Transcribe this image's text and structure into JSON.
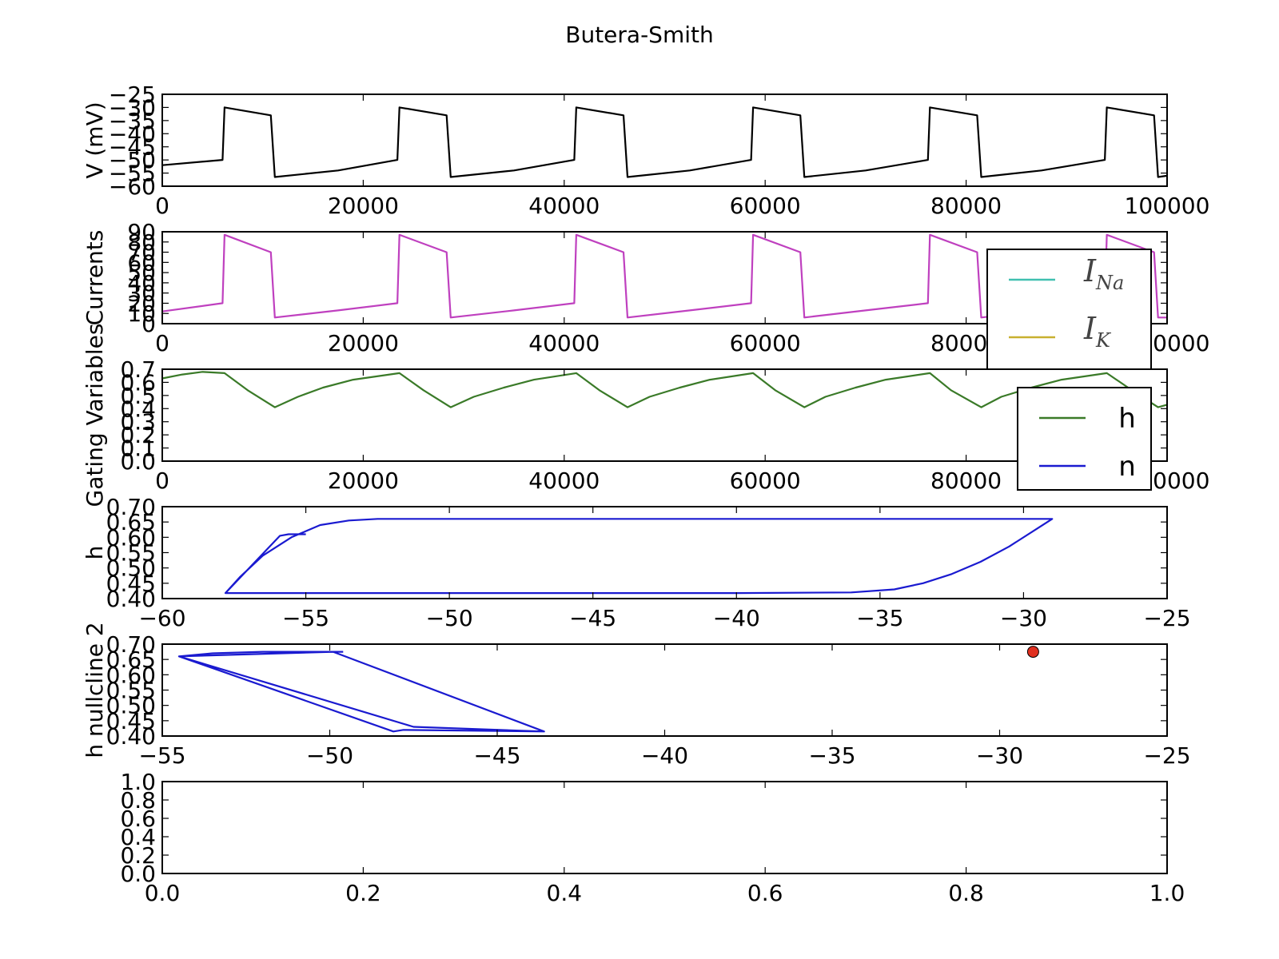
{
  "figure": {
    "title": "Butera-Smith"
  },
  "chart_data": [
    {
      "id": "voltage",
      "type": "line",
      "title": "",
      "ylabel": "V (mV)",
      "xlabel": "",
      "xlim": [
        0,
        100000
      ],
      "ylim": [
        -60,
        -25
      ],
      "xticks": [
        0,
        20000,
        40000,
        60000,
        80000,
        100000
      ],
      "yticks": [
        -60,
        -55,
        -50,
        -45,
        -40,
        -35,
        -30,
        -25
      ],
      "series": [
        {
          "color": "#000000",
          "x": [
            0,
            6000,
            6200,
            10800,
            11200,
            17500,
            23400,
            23600,
            28300,
            28700,
            35000,
            41000,
            41200,
            45900,
            46300,
            52500,
            58600,
            58800,
            63500,
            63900,
            70000,
            76200,
            76400,
            81100,
            81500,
            87500,
            93800,
            94000,
            98700,
            99100,
            100000
          ],
          "y": [
            -52,
            -50,
            -30,
            -33,
            -56.5,
            -54,
            -50,
            -30,
            -33,
            -56.5,
            -54,
            -50,
            -30,
            -33,
            -56.5,
            -54,
            -50,
            -30,
            -33,
            -56.5,
            -54,
            -50,
            -30,
            -33,
            -56.5,
            -54,
            -50,
            -30,
            -33,
            -56.5,
            -56
          ]
        }
      ],
      "legend": []
    },
    {
      "id": "currents",
      "type": "line",
      "ylabel": "Currents",
      "xlim": [
        0,
        100000
      ],
      "ylim": [
        0,
        90
      ],
      "xticks": [
        0,
        20000,
        40000,
        60000,
        80000,
        100000
      ],
      "yticks": [
        0,
        10,
        20,
        30,
        40,
        50,
        60,
        70,
        80,
        90
      ],
      "series": [
        {
          "color": "#bf40bf",
          "x": [
            0,
            6000,
            6200,
            10800,
            11200,
            17500,
            23400,
            23600,
            28300,
            28700,
            35000,
            41000,
            41200,
            45900,
            46300,
            52500,
            58600,
            58800,
            63500,
            63900,
            70000,
            76200,
            76400,
            81100,
            81500,
            87500,
            93800,
            94000,
            98700,
            99100,
            100000
          ],
          "y": [
            12,
            20,
            87,
            70,
            6,
            13,
            20,
            87,
            70,
            6,
            13,
            20,
            87,
            70,
            6,
            13,
            20,
            87,
            70,
            6,
            13,
            20,
            87,
            70,
            6,
            13,
            20,
            87,
            70,
            6,
            6
          ]
        }
      ],
      "legend": [
        {
          "base": "I",
          "sub": "Na",
          "color": "#40c0b0"
        },
        {
          "base": "I",
          "sub": "K",
          "color": "#c8b030"
        }
      ]
    },
    {
      "id": "gating",
      "type": "line",
      "ylabel": "Gating Variables",
      "xlim": [
        0,
        100000
      ],
      "ylim": [
        0,
        0.7
      ],
      "xticks": [
        0,
        20000,
        40000,
        60000,
        80000,
        100000
      ],
      "yticks": [
        0,
        0.1,
        0.2,
        0.3,
        0.4,
        0.5,
        0.6,
        0.7
      ],
      "series": [
        {
          "name": "h",
          "color": "#3a7a28",
          "x": [
            0,
            2000,
            4000,
            6200,
            8500,
            11200,
            13500,
            16000,
            19000,
            23600,
            26000,
            28700,
            31000,
            34000,
            37000,
            41200,
            43500,
            46300,
            48500,
            51500,
            54500,
            58800,
            61000,
            63900,
            66000,
            69000,
            72000,
            76400,
            78500,
            81500,
            83500,
            86500,
            89500,
            94000,
            96500,
            99100,
            100000
          ],
          "y": [
            0.63,
            0.66,
            0.68,
            0.67,
            0.54,
            0.41,
            0.49,
            0.56,
            0.62,
            0.67,
            0.54,
            0.41,
            0.49,
            0.56,
            0.62,
            0.67,
            0.54,
            0.41,
            0.49,
            0.56,
            0.62,
            0.67,
            0.54,
            0.41,
            0.49,
            0.56,
            0.62,
            0.67,
            0.54,
            0.41,
            0.49,
            0.56,
            0.62,
            0.67,
            0.54,
            0.41,
            0.43
          ]
        }
      ],
      "legend": [
        {
          "label": "h",
          "color": "#3a7a28"
        },
        {
          "label": "n",
          "color": "#1a1ad0"
        }
      ]
    },
    {
      "id": "phase",
      "type": "line",
      "ylabel": "h",
      "xlim": [
        -60,
        -25
      ],
      "ylim": [
        0.4,
        0.7
      ],
      "xticks": [
        -60,
        -55,
        -50,
        -45,
        -40,
        -35,
        -30,
        -25
      ],
      "yticks": [
        0.4,
        0.45,
        0.5,
        0.55,
        0.6,
        0.65,
        0.7
      ],
      "series": [
        {
          "color": "#1a1ad0",
          "x": [
            -55,
            -55.6,
            -55.9,
            -57.8,
            -57.3,
            -56.5,
            -55.5,
            -54.5,
            -53.5,
            -52.5,
            -40,
            -30,
            -29,
            -29.5,
            -30.5,
            -31.5,
            -32.5,
            -33.5,
            -34.5,
            -36,
            -40,
            -50,
            -57.8
          ],
          "y": [
            0.61,
            0.61,
            0.605,
            0.418,
            0.47,
            0.54,
            0.6,
            0.64,
            0.655,
            0.66,
            0.66,
            0.66,
            0.66,
            0.63,
            0.57,
            0.52,
            0.48,
            0.45,
            0.43,
            0.42,
            0.418,
            0.418,
            0.418
          ]
        }
      ],
      "legend": []
    },
    {
      "id": "nullcline",
      "type": "line",
      "ylabel": "h nullcline 2",
      "xlim": [
        -55,
        -25
      ],
      "ylim": [
        0.4,
        0.7
      ],
      "xticks": [
        -55,
        -50,
        -45,
        -40,
        -35,
        -30,
        -25
      ],
      "yticks": [
        0.4,
        0.45,
        0.5,
        0.55,
        0.6,
        0.65,
        0.7
      ],
      "series": [
        {
          "color": "#1a1ad0",
          "x": [
            -49.6,
            -52,
            -53.5,
            -54.5,
            -48.1,
            -47.8,
            -43.6,
            -49.9,
            -54.5,
            -47.5,
            -43.6
          ],
          "y": [
            0.675,
            0.675,
            0.67,
            0.66,
            0.415,
            0.42,
            0.415,
            0.675,
            0.66,
            0.43,
            0.415
          ]
        }
      ],
      "points": [
        {
          "x": -29,
          "y": 0.675,
          "color": "#e03020"
        }
      ],
      "legend": []
    },
    {
      "id": "empty",
      "type": "line",
      "ylabel": "",
      "xlim": [
        0,
        1
      ],
      "ylim": [
        0,
        1
      ],
      "xticks": [
        0.0,
        0.2,
        0.4,
        0.6,
        0.8,
        1.0
      ],
      "yticks": [
        0.0,
        0.2,
        0.4,
        0.6,
        0.8,
        1.0
      ],
      "series": [],
      "legend": []
    }
  ]
}
